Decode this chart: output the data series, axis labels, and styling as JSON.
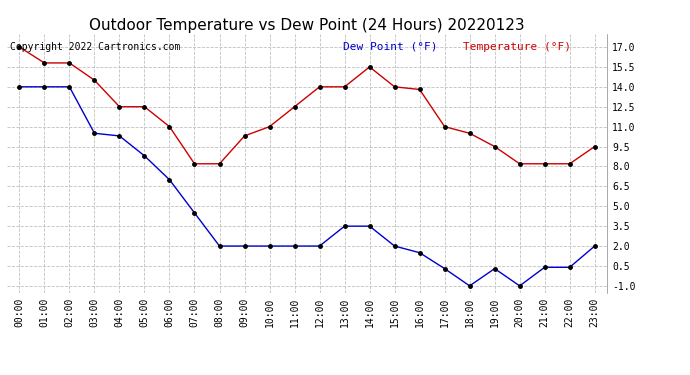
{
  "title": "Outdoor Temperature vs Dew Point (24 Hours) 20220123",
  "copyright_text": "Copyright 2022 Cartronics.com",
  "legend_dew": "Dew Point (°F)",
  "legend_temp": "Temperature (°F)",
  "hours": [
    "00:00",
    "01:00",
    "02:00",
    "03:00",
    "04:00",
    "05:00",
    "06:00",
    "07:00",
    "08:00",
    "09:00",
    "10:00",
    "11:00",
    "12:00",
    "13:00",
    "14:00",
    "15:00",
    "16:00",
    "17:00",
    "18:00",
    "19:00",
    "20:00",
    "21:00",
    "22:00",
    "23:00"
  ],
  "temperature": [
    17.0,
    15.8,
    15.8,
    14.5,
    12.5,
    12.5,
    11.0,
    8.2,
    8.2,
    10.3,
    11.0,
    12.5,
    14.0,
    14.0,
    15.5,
    14.0,
    13.8,
    11.0,
    10.5,
    9.5,
    8.2,
    8.2,
    8.2,
    9.5
  ],
  "dew_point": [
    14.0,
    14.0,
    14.0,
    10.5,
    10.3,
    8.8,
    7.0,
    4.5,
    2.0,
    2.0,
    2.0,
    2.0,
    2.0,
    3.5,
    3.5,
    2.0,
    1.5,
    0.3,
    -1.0,
    0.3,
    -1.0,
    0.4,
    0.4,
    2.0
  ],
  "temp_color": "#cc0000",
  "dew_color": "#0000cc",
  "marker_color": "#000000",
  "ylim_min": -1.5,
  "ylim_max": 18.0,
  "yticks": [
    -1.0,
    0.5,
    2.0,
    3.5,
    5.0,
    6.5,
    8.0,
    9.5,
    11.0,
    12.5,
    14.0,
    15.5,
    17.0
  ],
  "background_color": "#ffffff",
  "grid_color": "#c0c0c0",
  "title_fontsize": 11,
  "axis_fontsize": 7,
  "legend_fontsize": 8,
  "copyright_fontsize": 7
}
